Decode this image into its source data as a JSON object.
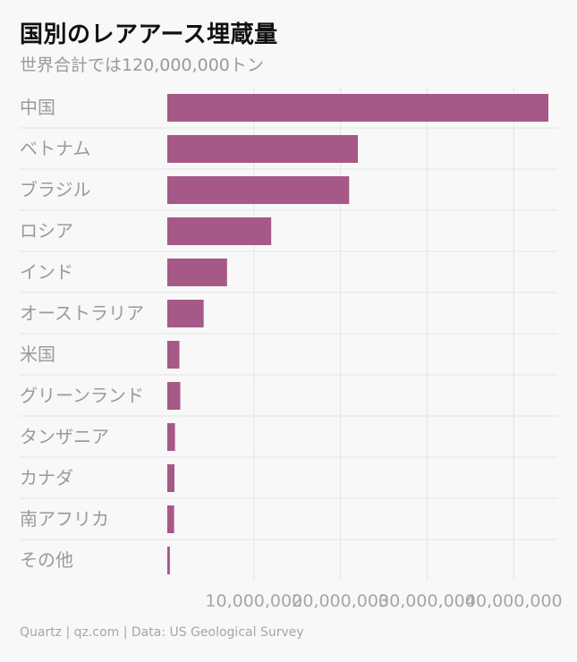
{
  "title": "国別のレアアース埋蔵量",
  "subtitle": "世界合計では120,000,000トン",
  "footer": "Quartz | qz.com | Data: US Geological Survey",
  "colors": {
    "bar": "#a65987",
    "grid": "#e3e3e3",
    "label": "#9a9a9a",
    "tick": "#a6a6a6"
  },
  "chart_data": {
    "type": "bar",
    "orientation": "horizontal",
    "categories": [
      "中国",
      "ベトナム",
      "ブラジル",
      "ロシア",
      "インド",
      "オーストラリア",
      "米国",
      "グリーンランド",
      "タンザニア",
      "カナダ",
      "南アフリカ",
      "その他"
    ],
    "values": [
      44000000,
      22000000,
      21000000,
      12000000,
      6900000,
      4200000,
      1400000,
      1500000,
      890000,
      830000,
      790000,
      300000
    ],
    "xlim": [
      0,
      44000000
    ],
    "xticks": [
      10000000,
      20000000,
      30000000,
      40000000
    ],
    "xtick_labels": [
      "10,000,000",
      "20,000,000",
      "30,000,000",
      "40,000,000"
    ],
    "grid": true,
    "title": "国別のレアアース埋蔵量",
    "subtitle": "世界合計では120,000,000トン"
  }
}
